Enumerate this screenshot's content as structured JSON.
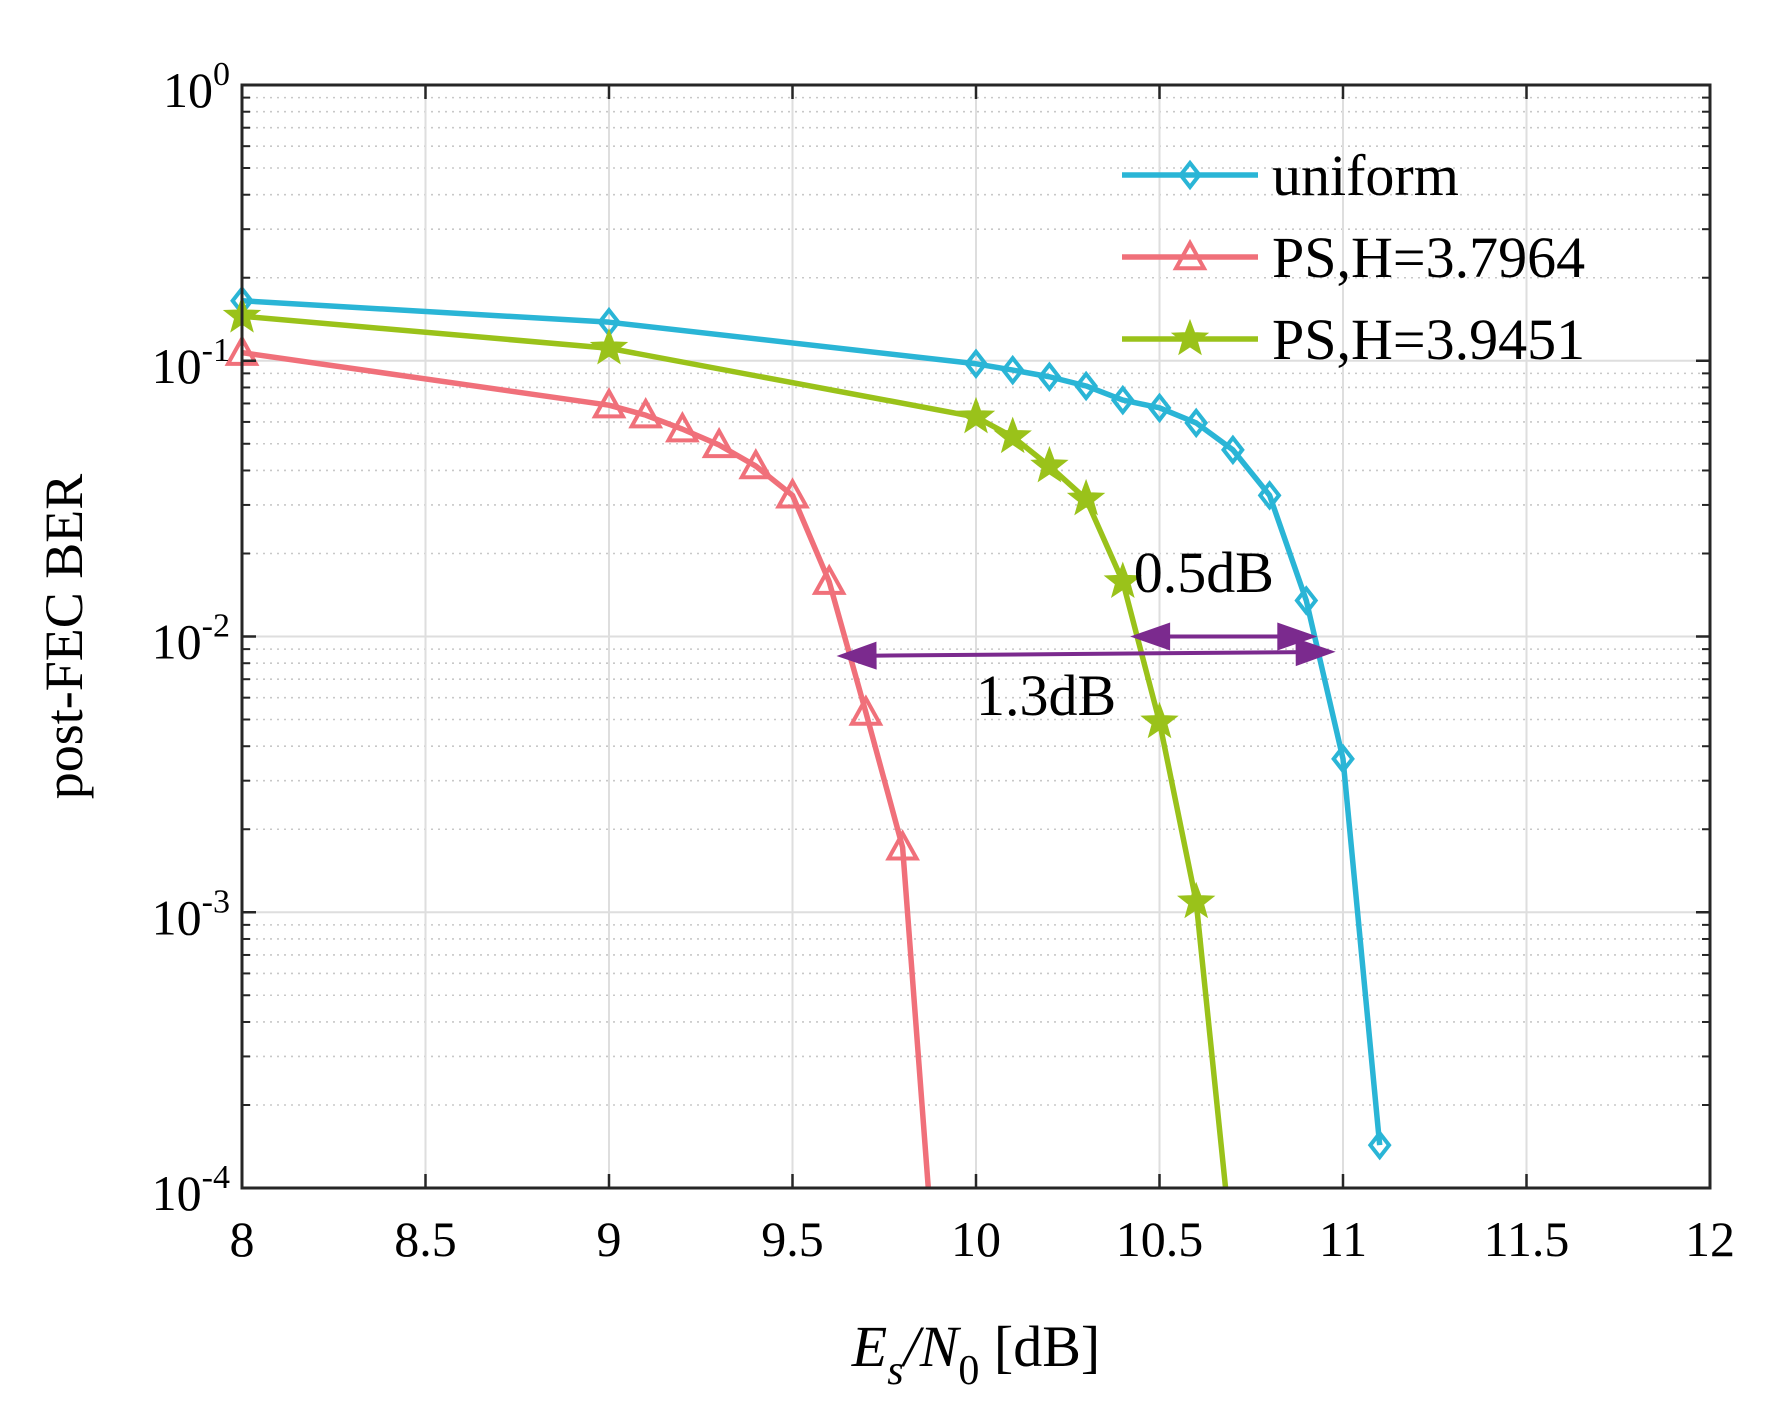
{
  "chart_data": {
    "type": "line",
    "title": "",
    "xlabel": {
      "main": "E",
      "sub1": "s",
      "slash": "/N",
      "sub2": "0",
      "unit": " [dB]"
    },
    "ylabel": "post-FEC BER",
    "xlim": [
      8,
      12
    ],
    "ylim": [
      0.0001,
      1
    ],
    "yscale": "log",
    "grid": true,
    "legend_position": "top-right",
    "x_ticks": [
      8,
      8.5,
      9,
      9.5,
      10,
      10.5,
      11,
      11.5,
      12
    ],
    "x_tick_labels": [
      "8",
      "8.5",
      "9",
      "9.5",
      "10",
      "10.5",
      "11",
      "11.5",
      "12"
    ],
    "y_ticks": [
      {
        "value": 1,
        "base": "10",
        "exp": "0"
      },
      {
        "value": 0.1,
        "base": "10",
        "exp": "-1"
      },
      {
        "value": 0.01,
        "base": "10",
        "exp": "-2"
      },
      {
        "value": 0.001,
        "base": "10",
        "exp": "-3"
      },
      {
        "value": 0.0001,
        "base": "10",
        "exp": "-4"
      }
    ],
    "series": [
      {
        "name": "uniform",
        "color": "#2ab5d6",
        "marker": "diamond",
        "x": [
          8,
          9,
          10,
          10.1,
          10.2,
          10.3,
          10.4,
          10.5,
          10.6,
          10.7,
          10.8,
          10.9,
          11,
          11.1
        ],
        "y": [
          0.165,
          0.138,
          0.0975,
          0.0925,
          0.0875,
          0.081,
          0.072,
          0.0675,
          0.0595,
          0.0475,
          0.0325,
          0.0135,
          0.0036,
          0.000143
        ]
      },
      {
        "name": "PS,H=3.7964",
        "color": "#f0707a",
        "marker": "triangle",
        "x": [
          8,
          9,
          9.1,
          9.2,
          9.3,
          9.4,
          9.5,
          9.6,
          9.7,
          9.8,
          9.87
        ],
        "y": [
          0.107,
          0.069,
          0.0635,
          0.0565,
          0.0495,
          0.0415,
          0.0325,
          0.0158,
          0.0053,
          0.00172,
          0.0001
        ]
      },
      {
        "name": "PS,H=3.9451",
        "color": "#9ac21a",
        "marker": "star",
        "x": [
          8,
          9,
          10,
          10.1,
          10.2,
          10.3,
          10.4,
          10.5,
          10.6,
          10.68
        ],
        "y": [
          0.145,
          0.111,
          0.0625,
          0.053,
          0.0415,
          0.0315,
          0.0158,
          0.0049,
          0.00109,
          0.0001
        ]
      }
    ],
    "annotations": [
      {
        "text": "0.5dB",
        "label_x": 10.43,
        "label_y": 0.0145,
        "arrow_from": [
          10.42,
          0.01
        ],
        "arrow_to": [
          10.93,
          0.01
        ],
        "color": "#7b2a8e"
      },
      {
        "text": "1.3dB",
        "label_x": 10.0,
        "label_y": 0.0052,
        "arrow_from": [
          9.62,
          0.0085
        ],
        "arrow_to": [
          10.98,
          0.0088
        ],
        "color": "#7b2a8e"
      }
    ],
    "marker_series_last_point_hidden": [
      false,
      true,
      true
    ]
  }
}
